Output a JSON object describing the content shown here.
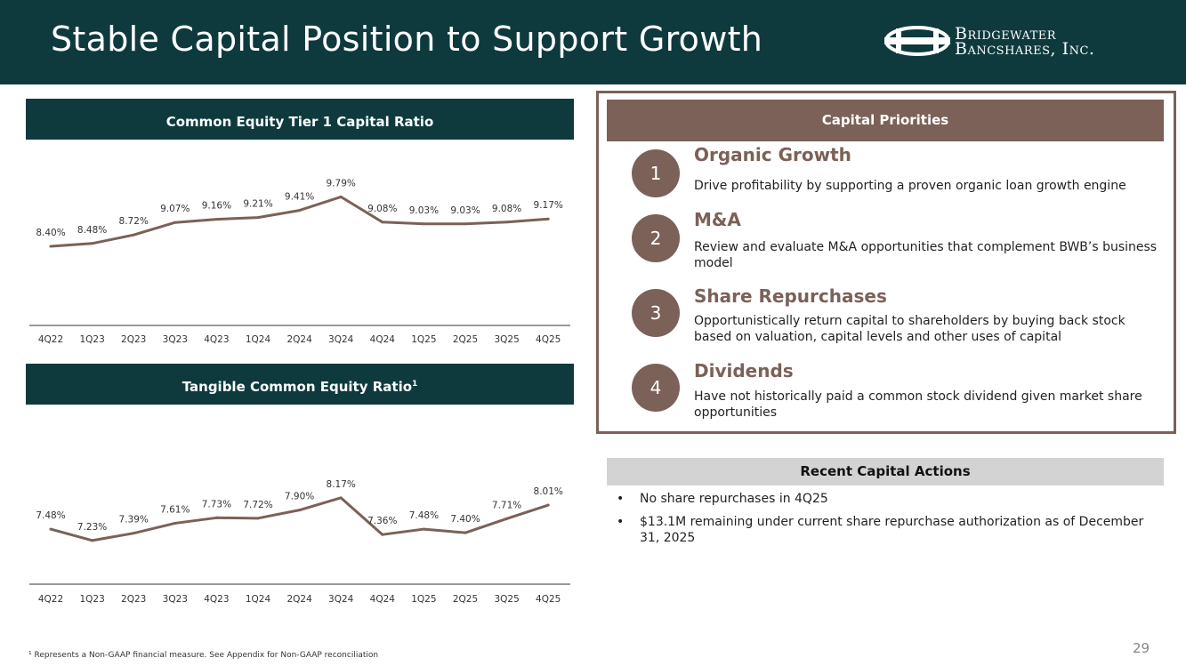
{
  "header": {
    "title": "Stable Capital Position to Support Growth",
    "logo_line1": "Bridgewater",
    "logo_line2": "Bancshares, Inc."
  },
  "colors": {
    "header_bg": "#0e3a3e",
    "accent": "#7b6158",
    "line": "#7b6158",
    "actions_bg": "#d3d3d3"
  },
  "chart_data": [
    {
      "type": "line",
      "title": "Common Equity Tier 1 Capital Ratio",
      "title_sup": "",
      "categories": [
        "4Q22",
        "1Q23",
        "2Q23",
        "3Q23",
        "4Q23",
        "1Q24",
        "2Q24",
        "3Q24",
        "4Q24",
        "1Q25",
        "2Q25",
        "3Q25",
        "4Q25"
      ],
      "values": [
        8.4,
        8.48,
        8.72,
        9.07,
        9.16,
        9.21,
        9.41,
        9.79,
        9.08,
        9.03,
        9.03,
        9.08,
        9.17
      ],
      "labels": [
        "8.40%",
        "8.48%",
        "8.72%",
        "9.07%",
        "9.16%",
        "9.21%",
        "9.41%",
        "9.79%",
        "9.08%",
        "9.03%",
        "9.03%",
        "9.08%",
        "9.17%"
      ],
      "ylim": [
        7.2,
        10.0
      ]
    },
    {
      "type": "line",
      "title": "Tangible Common Equity Ratio",
      "title_sup": "1",
      "categories": [
        "4Q22",
        "1Q23",
        "2Q23",
        "3Q23",
        "4Q23",
        "1Q24",
        "2Q24",
        "3Q24",
        "4Q24",
        "1Q25",
        "2Q25",
        "3Q25",
        "4Q25"
      ],
      "values": [
        7.48,
        7.23,
        7.39,
        7.61,
        7.73,
        7.72,
        7.9,
        8.17,
        7.36,
        7.48,
        7.4,
        7.71,
        8.01
      ],
      "labels": [
        "7.48%",
        "7.23%",
        "7.39%",
        "7.61%",
        "7.73%",
        "7.72%",
        "7.90%",
        "8.17%",
        "7.36%",
        "7.48%",
        "7.40%",
        "7.71%",
        "8.01%"
      ],
      "ylim": [
        6.6,
        8.5
      ]
    }
  ],
  "priorities": {
    "header": "Capital Priorities",
    "items": [
      {
        "num": "1",
        "title": "Organic Growth",
        "desc": "Drive profitability by supporting a proven organic loan growth engine"
      },
      {
        "num": "2",
        "title": "M&A",
        "desc": "Review and evaluate M&A opportunities that complement BWB’s business model"
      },
      {
        "num": "3",
        "title": "Share Repurchases",
        "desc": "Opportunistically return capital to shareholders by buying back stock based on valuation, capital levels and other uses of capital"
      },
      {
        "num": "4",
        "title": "Dividends",
        "desc": "Have not historically paid a common stock dividend given market share opportunities"
      }
    ]
  },
  "actions": {
    "header": "Recent Capital Actions",
    "bullet": "•",
    "items": [
      "No share repurchases in 4Q25",
      "$13.1M remaining under current share repurchase authorization as of December 31, 2025"
    ]
  },
  "footnote": "¹ Represents a Non-GAAP financial measure. See Appendix for Non-GAAP reconciliation",
  "page_number": "29"
}
